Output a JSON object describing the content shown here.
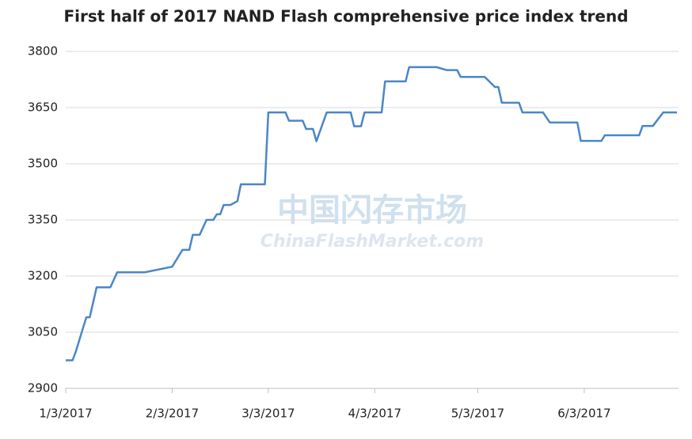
{
  "chart_data": {
    "type": "line",
    "title": "First half of 2017 NAND Flash comprehensive price index trend",
    "watermark": [
      "中国闪存市场",
      "ChinaFlashMarket.com"
    ],
    "x": [
      "1/3/2017",
      "1/5/2017",
      "1/6/2017",
      "1/9/2017",
      "1/10/2017",
      "1/12/2017",
      "1/16/2017",
      "1/18/2017",
      "1/26/2017",
      "2/3/2017",
      "2/6/2017",
      "2/8/2017",
      "2/9/2017",
      "2/11/2017",
      "2/13/2017",
      "2/15/2017",
      "2/16/2017",
      "2/17/2017",
      "2/18/2017",
      "2/20/2017",
      "2/22/2017",
      "2/23/2017",
      "3/2/2017",
      "3/3/2017",
      "3/8/2017",
      "3/9/2017",
      "3/13/2017",
      "3/14/2017",
      "3/16/2017",
      "3/17/2017",
      "3/20/2017",
      "3/27/2017",
      "3/28/2017",
      "3/30/2017",
      "3/31/2017",
      "4/5/2017",
      "4/6/2017",
      "4/12/2017",
      "4/13/2017",
      "4/21/2017",
      "4/24/2017",
      "4/27/2017",
      "4/28/2017",
      "5/5/2017",
      "5/8/2017",
      "5/9/2017",
      "5/10/2017",
      "5/15/2017",
      "5/16/2017",
      "5/22/2017",
      "5/24/2017",
      "6/1/2017",
      "6/2/2017",
      "6/8/2017",
      "6/9/2017",
      "6/19/2017",
      "6/20/2017",
      "6/23/2017",
      "6/26/2017",
      "6/30/2017"
    ],
    "series": [
      {
        "name": "NAND Flash comprehensive price index",
        "color": "#4a86c8",
        "values": [
          2975,
          2975,
          3000,
          3090,
          3090,
          3170,
          3170,
          3210,
          3210,
          3225,
          3270,
          3270,
          3310,
          3310,
          3350,
          3350,
          3365,
          3365,
          3390,
          3390,
          3400,
          3445,
          3445,
          3637,
          3637,
          3615,
          3615,
          3593,
          3593,
          3560,
          3637,
          3637,
          3600,
          3600,
          3637,
          3637,
          3720,
          3720,
          3758,
          3758,
          3750,
          3750,
          3732,
          3732,
          3705,
          3705,
          3663,
          3663,
          3637,
          3637,
          3610,
          3610,
          3561,
          3561,
          3576,
          3576,
          3601,
          3601,
          3637,
          3637
        ]
      }
    ],
    "xlim": [
      "1/3/2017",
      "6/30/2017"
    ],
    "xticks": [
      "1/3/2017",
      "2/3/2017",
      "3/3/2017",
      "4/3/2017",
      "5/3/2017",
      "6/3/2017"
    ],
    "ylim": [
      2900,
      3800
    ],
    "yticks": [
      2900,
      3050,
      3200,
      3350,
      3500,
      3650,
      3800
    ],
    "grid": true
  }
}
